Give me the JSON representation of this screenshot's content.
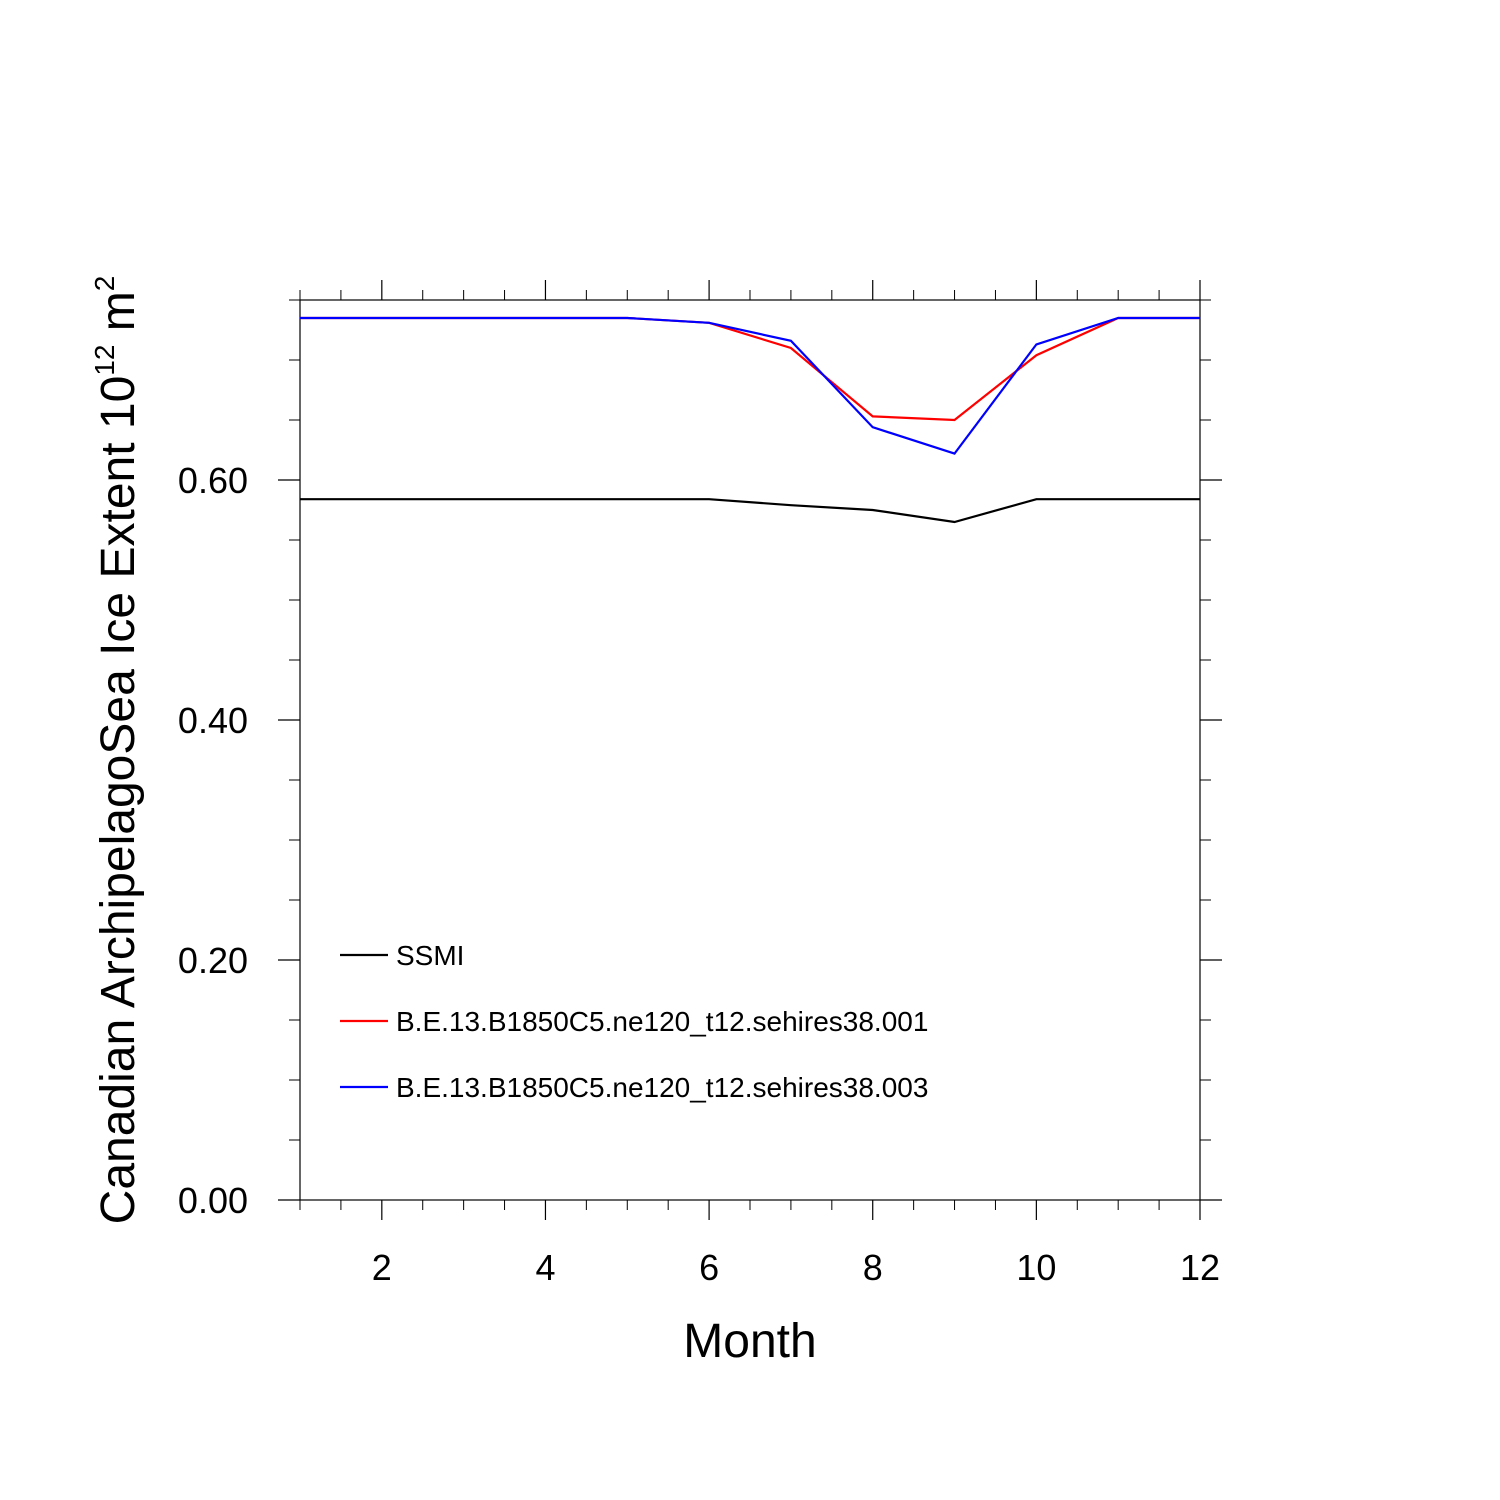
{
  "chart_data": {
    "type": "line",
    "title": "",
    "xlabel": "Month",
    "ylabel_main": "Canadian ArchipelagoSea Ice Extent 10",
    "ylabel_sup1": "12",
    "ylabel_mid": " m",
    "ylabel_sup2": "2",
    "xlim": [
      1,
      12
    ],
    "ylim": [
      0,
      0.75
    ],
    "xticks": [
      2,
      4,
      6,
      8,
      10,
      12
    ],
    "xtick_labels": [
      "2",
      "4",
      "6",
      "8",
      "10",
      "12"
    ],
    "yticks": [
      0,
      0.2,
      0.4,
      0.6
    ],
    "ytick_labels": [
      "0.00",
      "0.20",
      "0.40",
      "0.60"
    ],
    "grid": false,
    "legend_position": "lower-left",
    "x": [
      1,
      2,
      3,
      4,
      5,
      6,
      7,
      8,
      9,
      10,
      11,
      12
    ],
    "series": [
      {
        "name": "SSMI",
        "color": "#000000",
        "values": [
          0.584,
          0.584,
          0.584,
          0.584,
          0.584,
          0.584,
          0.579,
          0.575,
          0.565,
          0.584,
          0.584,
          0.584
        ]
      },
      {
        "name": "B.E.13.B1850C5.ne120_t12.sehires38.001",
        "color": "#ff0000",
        "values": [
          0.735,
          0.735,
          0.735,
          0.735,
          0.735,
          0.731,
          0.71,
          0.653,
          0.65,
          0.704,
          0.735,
          0.735
        ]
      },
      {
        "name": "B.E.13.B1850C5.ne120_t12.sehires38.003",
        "color": "#0000ff",
        "values": [
          0.735,
          0.735,
          0.735,
          0.735,
          0.735,
          0.731,
          0.716,
          0.644,
          0.622,
          0.713,
          0.735,
          0.735
        ]
      }
    ]
  }
}
